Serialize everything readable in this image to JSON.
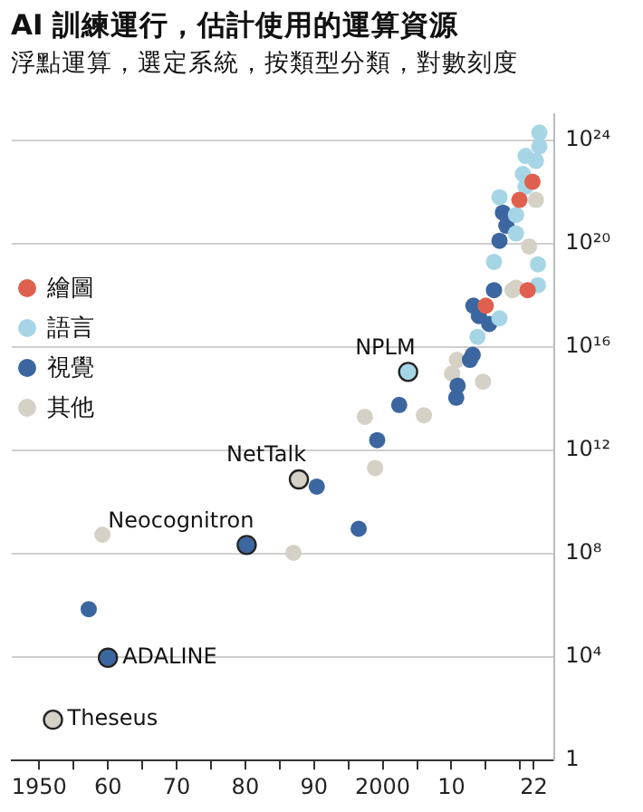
{
  "chart_data": {
    "type": "scatter",
    "title": "AI 訓練運行，估計使用的運算資源",
    "subtitle": "浮點運算，選定系統，按類型分類，對數刻度",
    "series": [
      {
        "name": "繪圖",
        "color": "#e0604f",
        "x": [
          2015,
          2021.1,
          2019.9,
          2021.8
        ],
        "values": [
          4e+17,
          1.6e+18,
          5e+21,
          2.5e+22
        ]
      },
      {
        "name": "語言",
        "color": "#a6d6e6",
        "x": [
          2003.7,
          2017,
          2013.8,
          2022.6,
          2016.2,
          2022.6,
          2019.4,
          2019.4,
          2017,
          2020.8,
          2020.4,
          2020.8,
          2022.8,
          2022.8,
          2022.3
        ],
        "values": [
          1100000000000000.0,
          1.3e+17,
          2.5e+16,
          2.5e+18,
          2e+19,
          1.6e+19,
          1.3e+21,
          2.5e+20,
          6.3e+21,
          1.6e+22,
          5e+22,
          2.5e+23,
          5.8e+23,
          2e+24,
          1.6e+23
        ]
      },
      {
        "name": "視覺",
        "color": "#3c66a0",
        "x": [
          1957.2,
          1960,
          1980.2,
          1990.4,
          1996.5,
          1999.2,
          2002.4,
          2010.7,
          2010.9,
          2012.7,
          2013.1,
          2013.2,
          2014,
          2015.5,
          2016.2,
          2017.5,
          2018,
          2017
        ],
        "values": [
          720000.0,
          9500.0,
          220000000.0,
          40000000000.0,
          930000000.0,
          2500000000000.0,
          58000000000000.0,
          110000000000000.0,
          320000000000000.0,
          3200000000000000.0,
          5000000000000000.0,
          4e+17,
          1.6e+17,
          7.9e+16,
          1.6e+18,
          1.6e+21,
          5e+20,
          1.3e+20
        ]
      },
      {
        "name": "其他",
        "color": "#d5d1c6",
        "x": [
          1952,
          1959.2,
          1987,
          1987.8,
          1998.9,
          1997.4,
          2006,
          2014.6,
          2010.1,
          2010.8,
          2018.9,
          2021.3,
          2019.4,
          2022.3
        ],
        "values": [
          38,
          550000000.0,
          110000000.0,
          76000000000.0,
          210000000000.0,
          20000000000000.0,
          23000000000000.0,
          460000000000000.0,
          950000000000000.0,
          3200000000000000.0,
          1.6e+18,
          7.9e+19,
          2e+18,
          5e+21
        ]
      }
    ],
    "annotations": [
      {
        "text": "NPLM",
        "x": 2003.7,
        "y": 1100000000000000.0
      },
      {
        "text": "NetTalk",
        "x": 1987.8,
        "y": 76000000000.0
      },
      {
        "text": "Neocognitron",
        "x": 1980.2,
        "y": 220000000.0
      },
      {
        "text": "ADALINE",
        "x": 1960,
        "y": 9500.0
      },
      {
        "text": "Theseus",
        "x": 1952,
        "y": 38
      }
    ],
    "log": "y",
    "xlim": [
      1946,
      2025
    ],
    "ylim": [
      1,
      1e+25
    ],
    "xticks": [
      1950,
      {
        "value": 1955,
        "label": null
      },
      {
        "value": 1960,
        "label": "60"
      },
      {
        "value": 1965,
        "label": null
      },
      {
        "value": 1970,
        "label": "70"
      },
      {
        "value": 1975,
        "label": null
      },
      {
        "value": 1980,
        "label": "80"
      },
      {
        "value": 1985,
        "label": null
      },
      {
        "value": 1990,
        "label": "90"
      },
      {
        "value": 1995,
        "label": null
      },
      2000,
      {
        "value": 2005,
        "label": null
      },
      {
        "value": 2010,
        "label": "10"
      },
      {
        "value": 2015,
        "label": null
      },
      {
        "value": 2020,
        "label": null
      },
      {
        "value": 2022,
        "label": "22"
      }
    ],
    "yticks": [
      1,
      {
        "value": 10000.0,
        "label": "10⁴"
      },
      {
        "value": 100000000.0,
        "label": "10⁸"
      },
      {
        "value": 1000000000000.0,
        "label": "10¹²"
      },
      {
        "value": 1e+16,
        "label": "10¹⁶"
      },
      {
        "value": 1e+20,
        "label": "10²⁰"
      },
      {
        "value": 1e+24,
        "label": "10²⁴"
      }
    ],
    "grid": "y",
    "legend": "left",
    "marker": "circle"
  }
}
